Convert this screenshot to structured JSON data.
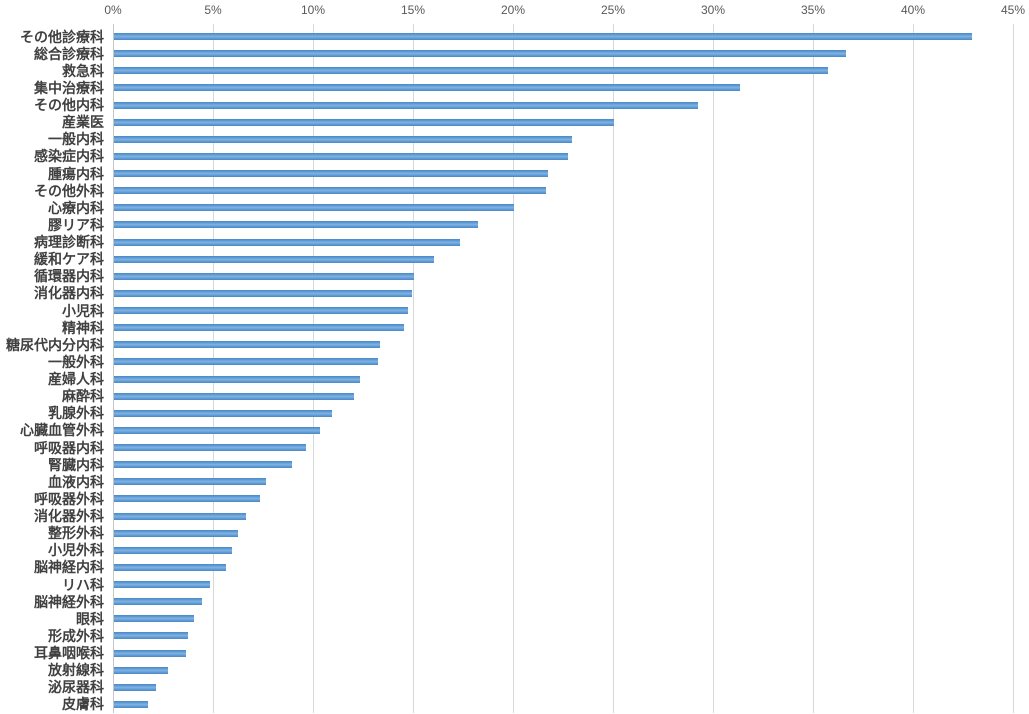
{
  "chart_data": {
    "type": "bar",
    "orientation": "horizontal",
    "title": "",
    "value_unit": "%",
    "sort": "descending",
    "legend": "none",
    "grid": true,
    "x_axis": {
      "position": "top",
      "min": 0,
      "max": 45,
      "step": 5,
      "tick_labels": [
        "0%",
        "5%",
        "10%",
        "15%",
        "20%",
        "25%",
        "30%",
        "35%",
        "40%",
        "45%"
      ]
    },
    "categories": [
      "その他診療科",
      "総合診療科",
      "救急科",
      "集中治療科",
      "その他内科",
      "産業医",
      "一般内科",
      "感染症内科",
      "腫瘍内科",
      "その他外科",
      "心療内科",
      "膠リア科",
      "病理診断科",
      "緩和ケア科",
      "循環器内科",
      "消化器内科",
      "小児科",
      "精神科",
      "糖尿代内分内科",
      "一般外科",
      "産婦人科",
      "麻酔科",
      "乳腺外科",
      "心臓血管外科",
      "呼吸器内科",
      "腎臓内科",
      "血液内科",
      "呼吸器外科",
      "消化器外科",
      "整形外科",
      "小児外科",
      "脳神経内科",
      "リハ科",
      "脳神経外科",
      "眼科",
      "形成外科",
      "耳鼻咽喉科",
      "放射線科",
      "泌尿器科",
      "皮膚科"
    ],
    "values": [
      42.9,
      36.6,
      35.7,
      31.3,
      29.2,
      25.0,
      22.9,
      22.7,
      21.7,
      21.6,
      20.0,
      18.2,
      17.3,
      16.0,
      15.0,
      14.9,
      14.7,
      14.5,
      13.3,
      13.2,
      12.3,
      12.0,
      10.9,
      10.3,
      9.6,
      8.9,
      7.6,
      7.3,
      6.6,
      6.2,
      5.9,
      5.6,
      4.8,
      4.4,
      4.0,
      3.7,
      3.6,
      2.7,
      2.1,
      1.7
    ],
    "colors": {
      "bar": "#5b9bd5",
      "bar_edge": "#4d87c3",
      "bar_highlight": "#82b2e2",
      "gridline": "#d8d8d8",
      "axis_line": "#c6c6c6",
      "tick_label_text": "#595959",
      "category_label_text": "#404040",
      "background": "#ffffff"
    }
  }
}
